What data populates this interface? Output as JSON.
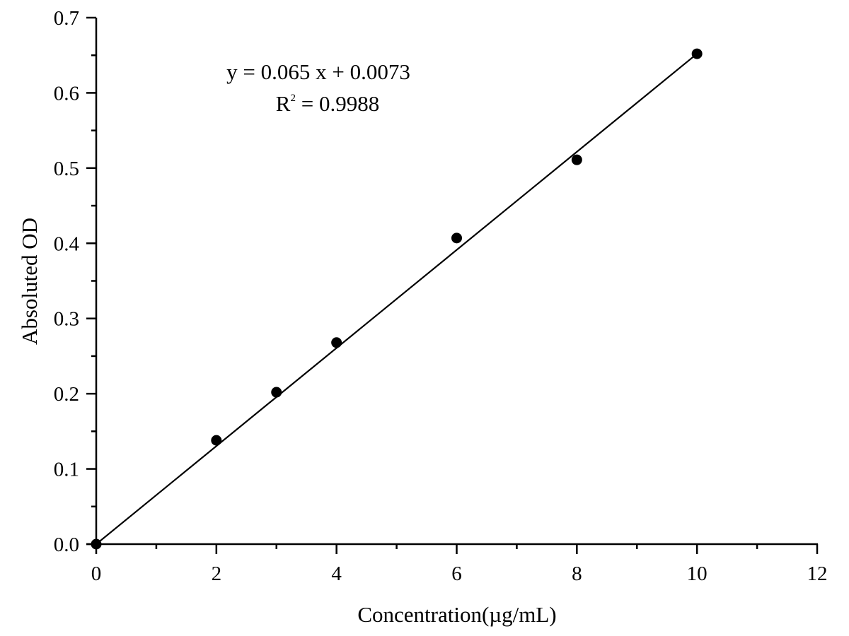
{
  "chart_data": {
    "type": "scatter",
    "title": "",
    "xlabel": "Concentration(µg/mL)",
    "ylabel": "Absoluted OD",
    "xlim": [
      0,
      12
    ],
    "ylim": [
      0,
      0.7
    ],
    "x_ticks": [
      0,
      2,
      4,
      6,
      8,
      10,
      12
    ],
    "x_tick_labels": [
      "0",
      "2",
      "4",
      "6",
      "8",
      "10",
      "12"
    ],
    "y_ticks": [
      0.0,
      0.1,
      0.2,
      0.3,
      0.4,
      0.5,
      0.6,
      0.7
    ],
    "y_tick_labels": [
      "0.0",
      "0.1",
      "0.2",
      "0.3",
      "0.4",
      "0.5",
      "0.6",
      "0.7"
    ],
    "grid": false,
    "legend": null,
    "series": [
      {
        "name": "Standard points",
        "marker": "filled-circle",
        "color": "#000000",
        "x": [
          0,
          2,
          3,
          4,
          6,
          8,
          10
        ],
        "y": [
          0.0,
          0.138,
          0.202,
          0.268,
          0.407,
          0.511,
          0.652
        ]
      },
      {
        "name": "Linear fit",
        "kind": "line",
        "color": "#000000",
        "slope": 0.065,
        "intercept": 0.0073,
        "x_range": [
          0,
          10
        ]
      }
    ],
    "annotations": [
      {
        "text": "y = 0.065 x + 0.0073"
      },
      {
        "text_prefix": "R",
        "superscript": "2",
        "text_suffix": " = 0.9988"
      }
    ]
  },
  "equation": {
    "line1": "y = 0.065 x + 0.0073",
    "r2_prefix": "R",
    "r2_sup": "2",
    "r2_suffix": " = 0.9988"
  },
  "axes": {
    "xlabel": "Concentration(µg/mL)",
    "ylabel": "Absoluted OD"
  }
}
